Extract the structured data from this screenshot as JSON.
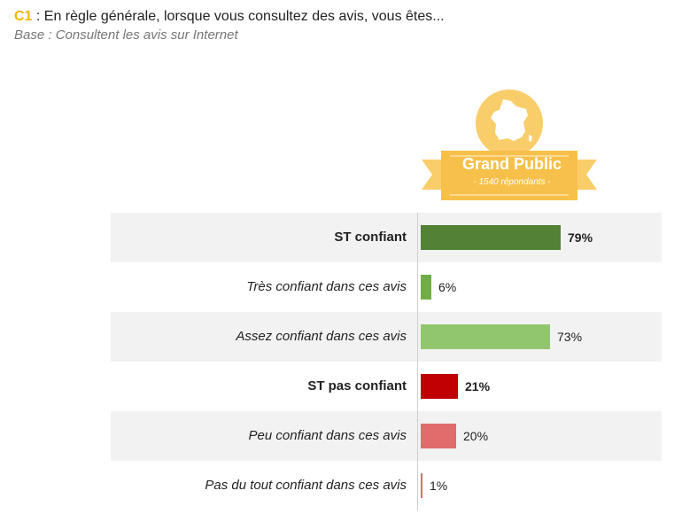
{
  "header": {
    "code": "C1",
    "question": " : En règle générale, lorsque vous consultez des avis, vous êtes...",
    "base": "Base : Consultent les avis sur Internet"
  },
  "badge": {
    "title": "Grand Public",
    "subtitle": "- 1540 répondants -",
    "icon": "france-map-icon"
  },
  "colors": {
    "accent": "#f2b705",
    "badge": "#f9cd6a",
    "confident_total": "#538135",
    "very_confident": "#70ad47",
    "rather_confident": "#92c66e",
    "not_confident_total": "#c00000",
    "little_confident": "#e06c6c",
    "not_at_all_confident": "#e06c6c"
  },
  "chart_data": {
    "type": "bar",
    "orientation": "horizontal",
    "categories": [
      "ST confiant",
      "Très confiant dans ces avis",
      "Assez confiant dans ces avis",
      "ST  pas confiant",
      "Peu confiant dans ces avis",
      "Pas du tout confiant dans ces avis"
    ],
    "values": [
      79,
      6,
      73,
      21,
      20,
      1
    ],
    "value_labels": [
      "79%",
      "6%",
      "73%",
      "21%",
      "20%",
      "1%"
    ],
    "series": [
      {
        "name": "Grand Public",
        "values": [
          79,
          6,
          73,
          21,
          20,
          1
        ]
      }
    ],
    "xlim": [
      0,
      100
    ],
    "grid": false,
    "title": "",
    "xlabel": "",
    "ylabel": ""
  }
}
